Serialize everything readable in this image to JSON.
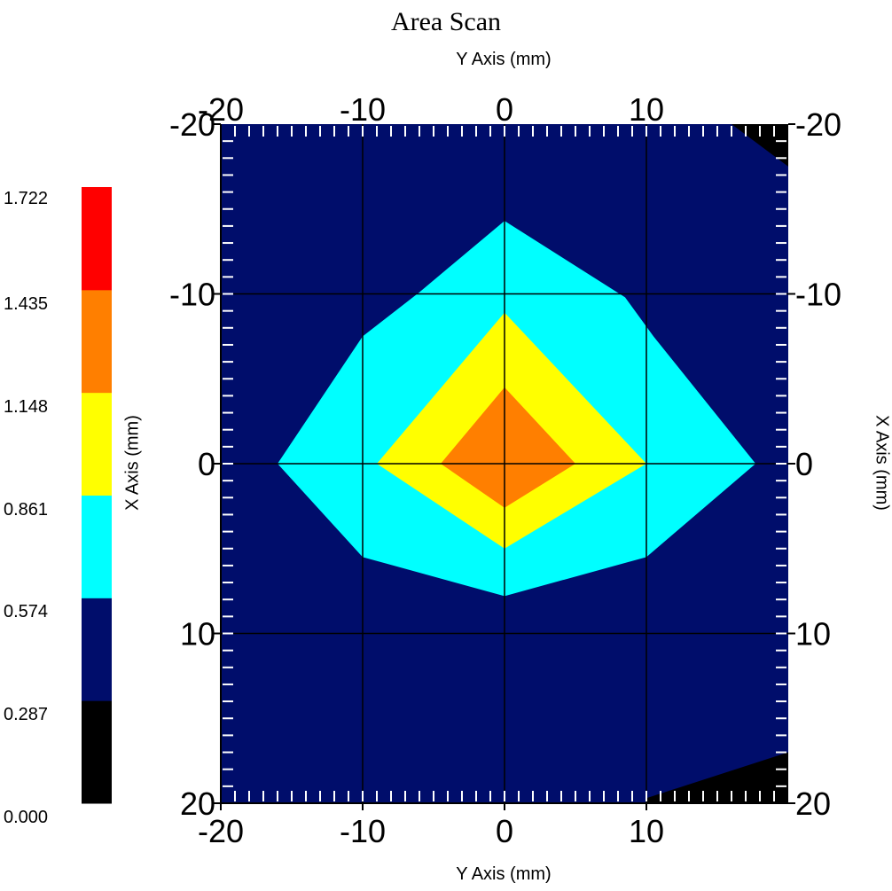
{
  "chart_data": {
    "type": "heatmap",
    "title": "Area Scan",
    "xlabel_top": "Y Axis (mm)",
    "xlabel_bottom": "Y Axis (mm)",
    "ylabel_left": "X Axis (mm)",
    "ylabel_right": "X Axis (mm)",
    "xlim": [
      -20,
      20
    ],
    "ylim": [
      -20,
      20
    ],
    "y_inverted": true,
    "x_ticks": [
      -20,
      -10,
      0,
      10
    ],
    "y_ticks": [
      -20,
      -10,
      0,
      10,
      20
    ],
    "grid": true,
    "colorbar": {
      "levels": [
        "0.000",
        "0.287",
        "0.574",
        "0.861",
        "1.148",
        "1.435",
        "1.722"
      ],
      "colors": [
        "#000000",
        "#000d6b",
        "#00ffff",
        "#ffff00",
        "#ff7f00",
        "#ff0000"
      ]
    },
    "background_level_color": "#000d6b",
    "contours": [
      {
        "level_range": [
          0.0,
          0.287
        ],
        "color": "#000000",
        "polygon": [
          [
            16,
            -20
          ],
          [
            20,
            -20
          ],
          [
            20,
            -17.5
          ]
        ]
      },
      {
        "level_range": [
          0.0,
          0.287
        ],
        "color": "#000000",
        "polygon": [
          [
            10,
            19.7
          ],
          [
            20,
            17
          ],
          [
            20,
            20
          ],
          [
            -20,
            20
          ],
          [
            -20,
            19.99
          ],
          [
            10,
            19.99
          ]
        ]
      },
      {
        "level_range": [
          0.574,
          0.861
        ],
        "color": "#00ffff",
        "polygon": [
          [
            0,
            -14.3
          ],
          [
            8.5,
            -9.8
          ],
          [
            10.5,
            -7.5
          ],
          [
            17.7,
            0
          ],
          [
            10,
            5.5
          ],
          [
            0,
            7.8
          ],
          [
            -10,
            5.5
          ],
          [
            -16,
            0
          ],
          [
            -10,
            -7.5
          ],
          [
            -6,
            -10.1
          ]
        ]
      },
      {
        "level_range": [
          0.861,
          1.148
        ],
        "color": "#ffff00",
        "polygon": [
          [
            0,
            -8.9
          ],
          [
            10,
            0
          ],
          [
            0,
            5
          ],
          [
            -9,
            0
          ]
        ]
      },
      {
        "level_range": [
          1.148,
          1.435
        ],
        "color": "#ff7f00",
        "polygon": [
          [
            0,
            -4.5
          ],
          [
            5,
            0
          ],
          [
            0,
            2.6
          ],
          [
            -4.5,
            0
          ]
        ]
      }
    ]
  }
}
